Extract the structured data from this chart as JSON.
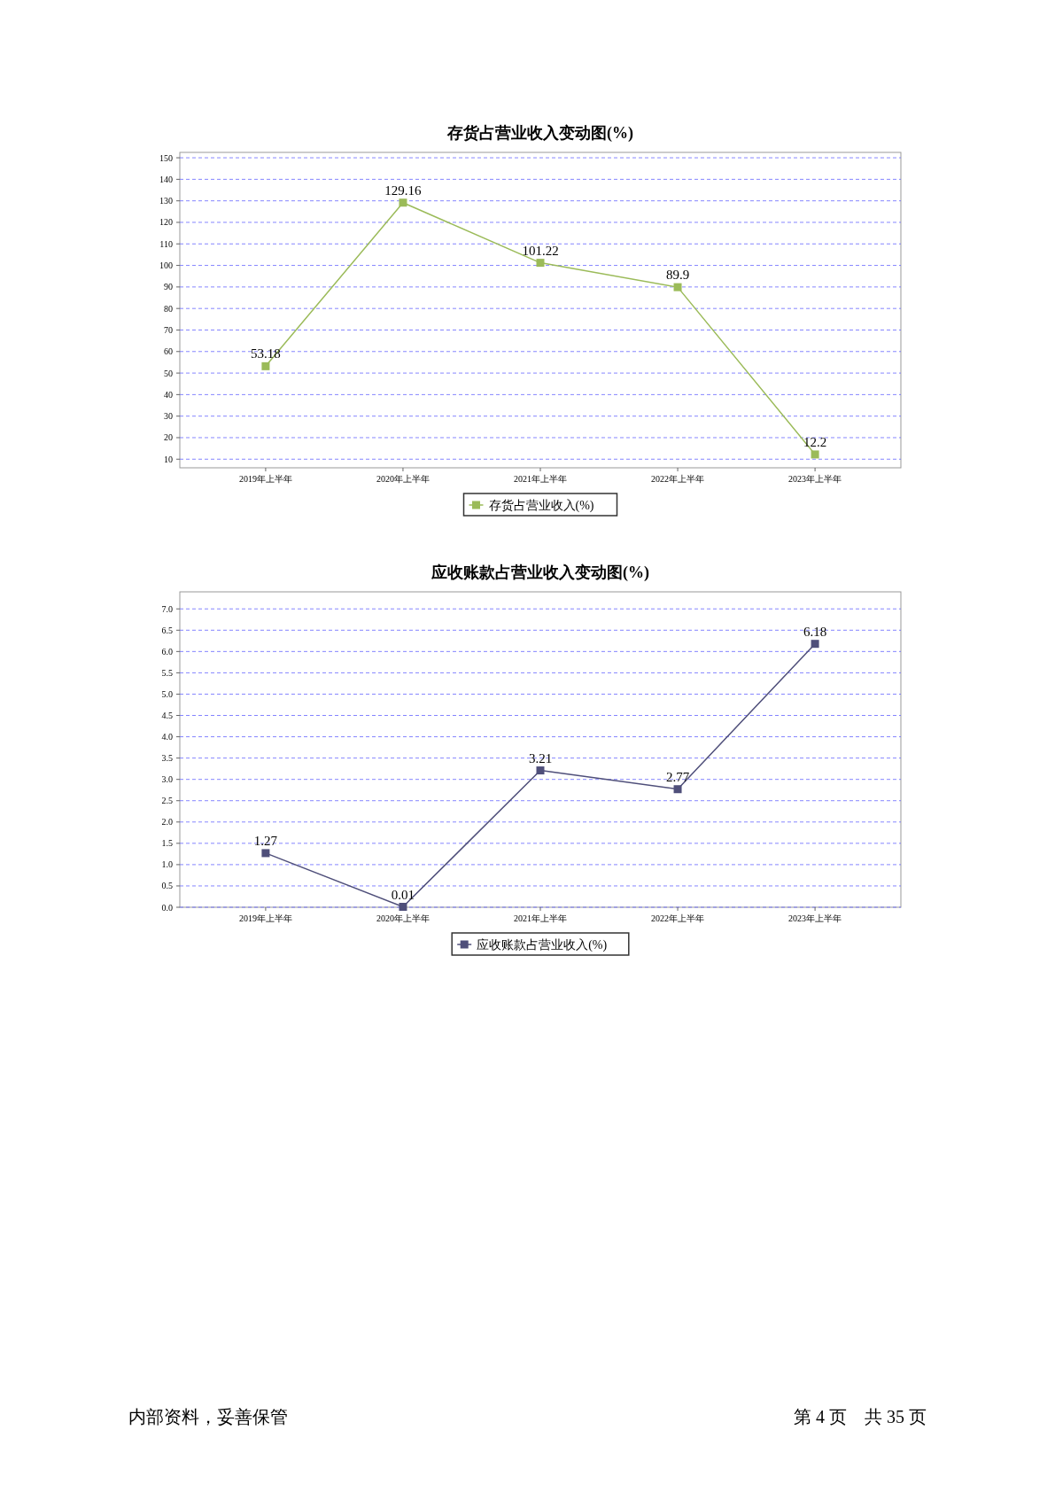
{
  "chart_data": [
    {
      "type": "line",
      "title": "存货占营业收入变动图(%)",
      "categories": [
        "2019年上半年",
        "2020年上半年",
        "2021年上半年",
        "2022年上半年",
        "2023年上半年"
      ],
      "series": [
        {
          "name": "存货占营业收入(%)",
          "color": "#9bbb59",
          "values": [
            53.18,
            129.16,
            101.22,
            89.9,
            12.2
          ]
        }
      ],
      "ylim": [
        6,
        152.5
      ],
      "yticks": [
        10,
        20,
        30,
        40,
        50,
        60,
        70,
        80,
        90,
        100,
        110,
        120,
        130,
        140,
        150
      ],
      "grid": "y",
      "legend": "bottom",
      "marker": "square",
      "line_style": "solid",
      "data_labels": true
    },
    {
      "type": "line",
      "title": "应收账款占营业收入变动图(%)",
      "categories": [
        "2019年上半年",
        "2020年上半年",
        "2021年上半年",
        "2022年上半年",
        "2023年上半年"
      ],
      "series": [
        {
          "name": "应收账款占营业收入(%)",
          "color": "#4f4f7a",
          "values": [
            1.27,
            0.01,
            3.21,
            2.77,
            6.18
          ]
        }
      ],
      "ylim": [
        0,
        7.4
      ],
      "yticks": [
        {
          "value": 0,
          "label": "0.0"
        },
        {
          "value": 0.5,
          "label": "0.5"
        },
        {
          "value": 1,
          "label": "1.0"
        },
        {
          "value": 1.5,
          "label": "1.5"
        },
        {
          "value": 2,
          "label": "2.0"
        },
        {
          "value": 2.5,
          "label": "2.5"
        },
        {
          "value": 3,
          "label": "3.0"
        },
        {
          "value": 3.5,
          "label": "3.5"
        },
        {
          "value": 4,
          "label": "4.0"
        },
        {
          "value": 4.5,
          "label": "4.5"
        },
        {
          "value": 5,
          "label": "5.0"
        },
        {
          "value": 5.5,
          "label": "5.5"
        },
        {
          "value": 6,
          "label": "6.0"
        },
        {
          "value": 6.5,
          "label": "6.5"
        },
        {
          "value": 7,
          "label": "7.0"
        }
      ],
      "grid": "y",
      "legend": "bottom",
      "marker": "square",
      "line_style": "solid",
      "data_labels": true,
      "annotations": [
        "内部资料，妥善保管",
        "第 4 页　共 35 页"
      ]
    }
  ]
}
